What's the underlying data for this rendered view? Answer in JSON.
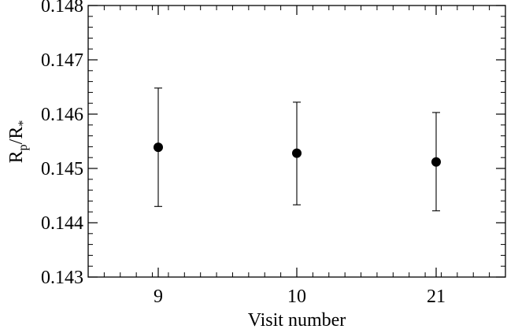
{
  "chart_data": {
    "type": "scatter",
    "title": "",
    "xlabel": "Visit number",
    "ylabel": "R_p/R_*",
    "ylabel_parts": {
      "main1": "R",
      "sub1": "p",
      "slash": "/R",
      "sub2": "*"
    },
    "categories": [
      "9",
      "10",
      "21"
    ],
    "ylim": [
      0.143,
      0.148
    ],
    "yticks": [
      0.143,
      0.144,
      0.145,
      0.146,
      0.147,
      0.148
    ],
    "ytick_labels": [
      "0.143",
      "0.144",
      "0.145",
      "0.146",
      "0.147",
      "0.148"
    ],
    "grid": false,
    "series": [
      {
        "values": [
          0.14539,
          0.14528,
          0.14512
        ],
        "err_low": [
          0.1443,
          0.14433,
          0.14422
        ],
        "err_high": [
          0.14648,
          0.14622,
          0.14603
        ]
      }
    ],
    "colors": {
      "marker": "#000000",
      "axes": "#000000"
    }
  }
}
